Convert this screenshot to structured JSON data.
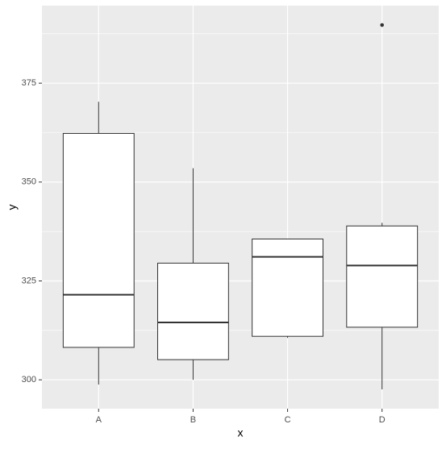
{
  "chart_data": {
    "type": "boxplot",
    "x_label": "x",
    "y_label": "y",
    "categories": [
      "A",
      "B",
      "C",
      "D"
    ],
    "boxes": [
      {
        "low": 298.8,
        "q1": 308.2,
        "median": 321.5,
        "q3": 362.3,
        "high": 370.3,
        "outliers": []
      },
      {
        "low": 300,
        "q1": 305.1,
        "median": 314.5,
        "q3": 329.5,
        "high": 353.5,
        "outliers": []
      },
      {
        "low": 310.6,
        "q1": 311.0,
        "median": 331.1,
        "q3": 335.6,
        "high": 335.6,
        "outliers": []
      },
      {
        "low": 297.6,
        "q1": 313.3,
        "median": 328.9,
        "q3": 338.9,
        "high": 339.7,
        "outliers": [
          389.7
        ]
      }
    ],
    "ylim": [
      292.7,
      394.6
    ],
    "yticks": [
      300,
      325,
      350,
      375
    ],
    "grid": true,
    "box_fill": "#ffffff",
    "line_color": "#333333",
    "panel_color": "#ebebeb"
  }
}
